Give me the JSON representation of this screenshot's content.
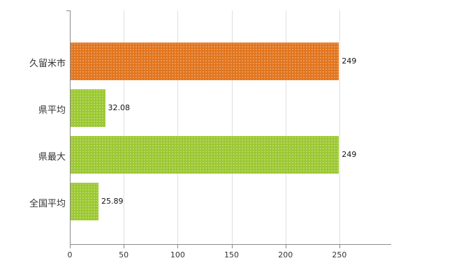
{
  "chart_data": {
    "type": "bar",
    "orientation": "horizontal",
    "title": "",
    "xlabel": "",
    "ylabel": "",
    "categories": [
      "久留米市",
      "県平均",
      "県最大",
      "全国平均"
    ],
    "values": [
      249,
      32.08,
      249,
      25.89
    ],
    "value_labels": [
      "249",
      "32.08",
      "249",
      "25.89"
    ],
    "bar_colors": [
      "#e2751d",
      "#9cc832",
      "#9cc832",
      "#9cc832"
    ],
    "xlim": [
      0,
      298
    ],
    "xticks": [
      0,
      50,
      100,
      150,
      200,
      250
    ],
    "grid": true,
    "legend": "none",
    "background_color": "#ffffff",
    "axis_color": "#8a8a8a",
    "gridline_color": "#e0e0e0"
  }
}
